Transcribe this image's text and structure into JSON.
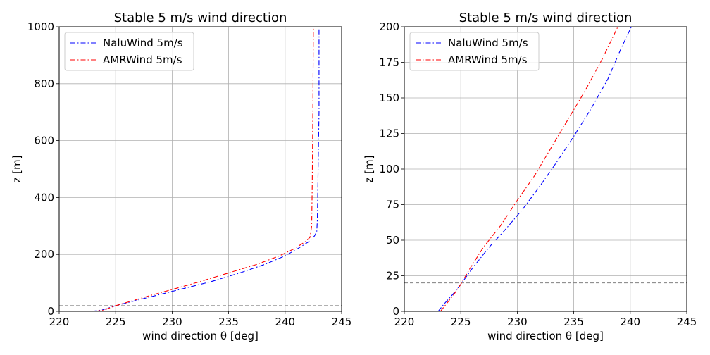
{
  "chart_data": [
    {
      "type": "line",
      "title": "Stable 5 m/s wind direction",
      "xlabel": "wind direction θ [deg]",
      "ylabel": "z [m]",
      "xlim": [
        220,
        245
      ],
      "ylim": [
        0,
        1000
      ],
      "xticks": [
        "220",
        "225",
        "230",
        "235",
        "240",
        "245"
      ],
      "yticks": [
        "0",
        "200",
        "400",
        "600",
        "800",
        "1000"
      ],
      "grid": true,
      "legend_position": "top-left",
      "hline": {
        "y": 20,
        "color": "#808080",
        "style": "dashed"
      },
      "series": [
        {
          "name": "NaluWind 5m/s",
          "color": "#0000ff",
          "style": "dashdot",
          "points": [
            [
              222.9,
              0
            ],
            [
              223.8,
              5
            ],
            [
              225.0,
              20
            ],
            [
              226.5,
              35
            ],
            [
              228.5,
              55
            ],
            [
              231.0,
              80
            ],
            [
              233.5,
              105
            ],
            [
              236.0,
              135
            ],
            [
              238.2,
              165
            ],
            [
              240.0,
              195
            ],
            [
              241.1,
              220
            ],
            [
              242.1,
              245
            ],
            [
              242.6,
              265
            ],
            [
              242.8,
              280
            ],
            [
              242.85,
              320
            ],
            [
              242.9,
              450
            ],
            [
              242.95,
              580
            ],
            [
              243.0,
              700
            ],
            [
              243.0,
              850
            ],
            [
              243.0,
              1000
            ]
          ]
        },
        {
          "name": "AMRWind 5m/s",
          "color": "#ff0000",
          "style": "dashdot",
          "points": [
            [
              223.2,
              0
            ],
            [
              224.0,
              5
            ],
            [
              225.0,
              20
            ],
            [
              226.3,
              35
            ],
            [
              228.0,
              55
            ],
            [
              230.3,
              80
            ],
            [
              232.5,
              105
            ],
            [
              235.0,
              135
            ],
            [
              237.5,
              165
            ],
            [
              239.5,
              195
            ],
            [
              240.8,
              220
            ],
            [
              241.8,
              245
            ],
            [
              242.2,
              260
            ],
            [
              242.35,
              300
            ],
            [
              242.4,
              450
            ],
            [
              242.45,
              700
            ],
            [
              242.5,
              1000
            ]
          ]
        }
      ]
    },
    {
      "type": "line",
      "title": "Stable 5 m/s wind direction",
      "xlabel": "wind direction θ [deg]",
      "ylabel": "z [m]",
      "xlim": [
        220,
        245
      ],
      "ylim": [
        0,
        200
      ],
      "xticks": [
        "220",
        "225",
        "230",
        "235",
        "240",
        "245"
      ],
      "yticks": [
        "0",
        "25",
        "50",
        "75",
        "100",
        "125",
        "150",
        "175",
        "200"
      ],
      "grid": true,
      "legend_position": "top-left",
      "hline": {
        "y": 20,
        "color": "#808080",
        "style": "dashed"
      },
      "series": [
        {
          "name": "NaluWind 5m/s",
          "color": "#0000ff",
          "style": "dashdot",
          "points": [
            [
              223.0,
              0
            ],
            [
              223.5,
              5
            ],
            [
              224.3,
              12
            ],
            [
              225.0,
              19
            ],
            [
              226.0,
              30
            ],
            [
              227.5,
              45
            ],
            [
              229.0,
              58
            ],
            [
              230.5,
              72
            ],
            [
              232.0,
              88
            ],
            [
              233.5,
              105
            ],
            [
              235.0,
              123
            ],
            [
              236.5,
              142
            ],
            [
              238.0,
              163
            ],
            [
              239.2,
              185
            ],
            [
              240.1,
              200
            ]
          ]
        },
        {
          "name": "AMRWind 5m/s",
          "color": "#ff0000",
          "style": "dashdot",
          "points": [
            [
              223.2,
              0
            ],
            [
              223.7,
              5
            ],
            [
              224.4,
              12
            ],
            [
              225.0,
              19
            ],
            [
              225.8,
              30
            ],
            [
              227.0,
              45
            ],
            [
              228.5,
              60
            ],
            [
              230.0,
              78
            ],
            [
              231.5,
              95
            ],
            [
              233.0,
              115
            ],
            [
              234.5,
              135
            ],
            [
              236.0,
              155
            ],
            [
              237.5,
              177
            ],
            [
              238.9,
              200
            ]
          ]
        }
      ]
    }
  ]
}
